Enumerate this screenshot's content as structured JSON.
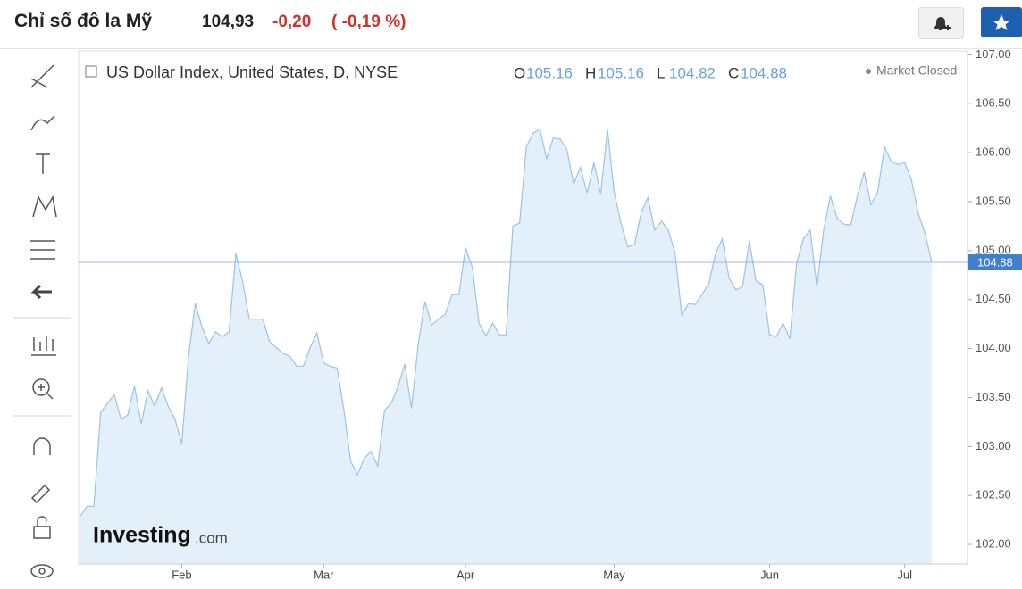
{
  "header": {
    "title": "Chỉ số đô la Mỹ",
    "price": "104,93",
    "change": "-0,20",
    "change_pct": "( -0,19 %)"
  },
  "legend": {
    "name": "US Dollar Index, United States, D, NYSE",
    "ohlc": [
      {
        "key": "O",
        "value": "105.16"
      },
      {
        "key": "H",
        "value": "105.16"
      },
      {
        "key": "L",
        "value": "104.82"
      },
      {
        "key": "C",
        "value": "104.88"
      }
    ],
    "status": "Market Closed"
  },
  "watermark": {
    "brand": "Investing",
    "suffix": ".com"
  },
  "chart_data": {
    "type": "area",
    "color": "#9cc3e6",
    "fill": "#e3f0fa",
    "categories": [
      null,
      null,
      null,
      null,
      null,
      null,
      null,
      null,
      null,
      null,
      null,
      null,
      null,
      null,
      null,
      "Feb",
      null,
      null,
      null,
      null,
      null,
      null,
      null,
      null,
      null,
      null,
      null,
      null,
      null,
      null,
      null,
      null,
      null,
      null,
      null,
      null,
      "Mar",
      null,
      null,
      null,
      null,
      null,
      null,
      null,
      null,
      null,
      null,
      null,
      null,
      null,
      null,
      null,
      null,
      null,
      null,
      null,
      null,
      "Apr",
      null,
      null,
      null,
      null,
      null,
      null,
      null,
      null,
      null,
      null,
      null,
      null,
      null,
      null,
      null,
      null,
      null,
      null,
      null,
      null,
      null,
      "May",
      null,
      null,
      null,
      null,
      null,
      null,
      null,
      null,
      null,
      null,
      null,
      null,
      null,
      null,
      null,
      null,
      null,
      null,
      null,
      null,
      null,
      null,
      "Jun",
      null,
      null,
      null,
      null,
      null,
      null,
      null,
      null,
      null,
      null,
      null,
      null,
      null,
      null,
      null,
      null,
      null,
      null,
      null,
      "Jul",
      null,
      null,
      null,
      null
    ],
    "values": [
      102.29,
      102.39,
      102.39,
      103.35,
      103.44,
      103.53,
      103.28,
      103.32,
      103.62,
      103.23,
      103.57,
      103.41,
      103.6,
      103.41,
      103.28,
      103.03,
      103.92,
      104.46,
      104.22,
      104.05,
      104.17,
      104.12,
      104.17,
      104.97,
      104.69,
      104.3,
      104.3,
      104.3,
      104.07,
      104.01,
      103.95,
      103.92,
      103.82,
      103.82,
      104.01,
      104.16,
      103.85,
      103.82,
      103.8,
      103.37,
      102.85,
      102.71,
      102.88,
      102.95,
      102.8,
      103.37,
      103.44,
      103.61,
      103.84,
      103.39,
      104.05,
      104.48,
      104.24,
      104.3,
      104.35,
      104.55,
      104.55,
      105.03,
      104.83,
      104.26,
      104.13,
      104.26,
      104.14,
      104.14,
      105.25,
      105.28,
      106.06,
      106.2,
      106.24,
      105.94,
      106.15,
      106.14,
      106.03,
      105.68,
      105.85,
      105.59,
      105.9,
      105.58,
      106.24,
      105.6,
      105.28,
      105.04,
      105.06,
      105.39,
      105.54,
      105.21,
      105.3,
      105.21,
      104.98,
      104.34,
      104.46,
      104.45,
      104.55,
      104.66,
      104.97,
      105.12,
      104.72,
      104.6,
      104.63,
      105.1,
      104.69,
      104.65,
      104.14,
      104.12,
      104.26,
      104.1,
      104.87,
      105.12,
      105.21,
      104.63,
      105.21,
      105.56,
      105.33,
      105.27,
      105.26,
      105.56,
      105.8,
      105.47,
      105.6,
      106.06,
      105.91,
      105.88,
      105.9,
      105.72,
      105.38,
      105.18,
      104.88
    ],
    "ylim": [
      101.8,
      107.04
    ],
    "yticks": [
      {
        "value": 102,
        "label": "102.00"
      },
      {
        "value": 102.5,
        "label": "102.50"
      },
      {
        "value": 103,
        "label": "103.00"
      },
      {
        "value": 103.5,
        "label": "103.50"
      },
      {
        "value": 104,
        "label": "104.00"
      },
      {
        "value": 104.5,
        "label": "104.50"
      },
      {
        "value": 105,
        "label": "105.00"
      },
      {
        "value": 105.5,
        "label": "105.50"
      },
      {
        "value": 106,
        "label": "106.00"
      },
      {
        "value": 106.5,
        "label": "106.50"
      },
      {
        "value": 107,
        "label": "107.00"
      }
    ],
    "last_price": {
      "value": 104.88,
      "label": "104.88"
    }
  }
}
